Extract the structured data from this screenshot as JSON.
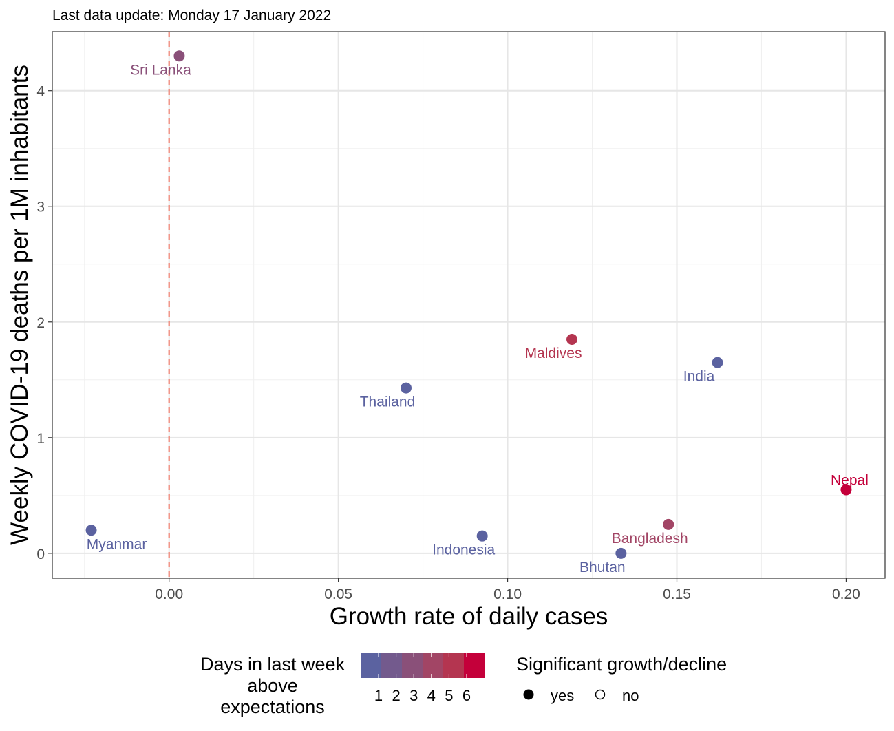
{
  "chart_data": {
    "type": "scatter",
    "subtitle": "Last data update: Monday 17 January 2022",
    "xlabel": "Growth rate of daily cases",
    "ylabel": "Weekly COVID-19 deaths per 1M inhabitants",
    "xlim": [
      -0.0345,
      0.2115
    ],
    "ylim": [
      -0.215,
      4.51
    ],
    "x_ticks": [
      0.0,
      0.05,
      0.1,
      0.15,
      0.2
    ],
    "x_tick_labels": [
      "0.00",
      "0.05",
      "0.10",
      "0.15",
      "0.20"
    ],
    "y_ticks": [
      0,
      1,
      2,
      3,
      4
    ],
    "y_tick_labels": [
      "0",
      "1",
      "2",
      "3",
      "4"
    ],
    "grid": true,
    "reference_line": {
      "x": 0,
      "color": "#f08070",
      "style": "dashed"
    },
    "points": [
      {
        "label": "Sri Lanka",
        "x": 0.003,
        "y": 4.3,
        "days": 3,
        "significant": "yes",
        "label_pos": "below-left"
      },
      {
        "label": "Maldives",
        "x": 0.119,
        "y": 1.85,
        "days": 5,
        "significant": "yes",
        "label_pos": "below-left"
      },
      {
        "label": "India",
        "x": 0.162,
        "y": 1.65,
        "days": 1,
        "significant": "yes",
        "label_pos": "below-left"
      },
      {
        "label": "Thailand",
        "x": 0.07,
        "y": 1.43,
        "days": 1,
        "significant": "yes",
        "label_pos": "below-left"
      },
      {
        "label": "Nepal",
        "x": 0.2,
        "y": 0.55,
        "days": 6,
        "significant": "yes",
        "label_pos": "above"
      },
      {
        "label": "Bangladesh",
        "x": 0.1475,
        "y": 0.25,
        "days": 4,
        "significant": "yes",
        "label_pos": "below-left"
      },
      {
        "label": "Myanmar",
        "x": -0.023,
        "y": 0.2,
        "days": 1,
        "significant": "yes",
        "label_pos": "below-right"
      },
      {
        "label": "Indonesia",
        "x": 0.0925,
        "y": 0.15,
        "days": 1,
        "significant": "yes",
        "label_pos": "below-left"
      },
      {
        "label": "Bhutan",
        "x": 0.1335,
        "y": 0.0,
        "days": 1,
        "significant": "yes",
        "label_pos": "below-left"
      }
    ],
    "legend_days": {
      "title_lines": [
        "Days in last week",
        "above",
        "expectations"
      ],
      "labels": [
        "1",
        "2",
        "3",
        "4",
        "5",
        "6"
      ],
      "colors": [
        "#5b62a0",
        "#735a8d",
        "#8a5079",
        "#a24565",
        "#b43550",
        "#c4003a"
      ]
    },
    "legend_significance": {
      "title": "Significant growth/decline",
      "items": [
        {
          "label": "yes",
          "filled": true
        },
        {
          "label": "no",
          "filled": false
        }
      ]
    }
  }
}
